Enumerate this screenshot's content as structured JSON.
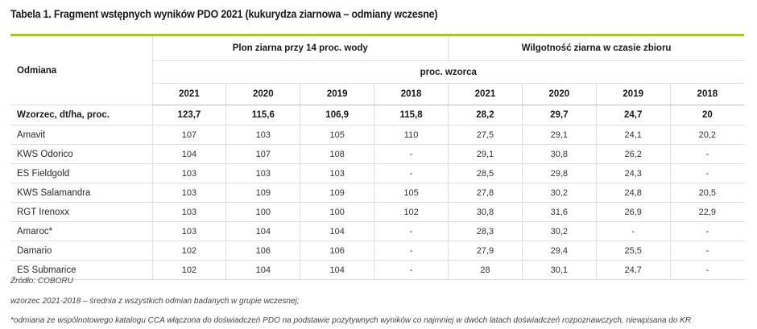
{
  "title": "Tabela 1. Fragment wstępnych wyników PDO 2021 (kukurydza ziarnowa – odmiany wczesne)",
  "header": {
    "variety_label": "Odmiana",
    "group_yield": "Plon ziarna przy 14 proc. wody",
    "group_moisture": "Wilgotność ziarna w czasie zbioru",
    "unit": "proc. wzorca",
    "years": [
      "2021",
      "2020",
      "2019",
      "2018",
      "2021",
      "2020",
      "2019",
      "2018"
    ]
  },
  "reference_row": {
    "name": "Wzorzec, dt/ha, proc.",
    "values": [
      "123,7",
      "115,6",
      "106,9",
      "115,8",
      "28,2",
      "29,7",
      "24,7",
      "20"
    ]
  },
  "rows": [
    {
      "name": "Amavit",
      "values": [
        "107",
        "103",
        "105",
        "110",
        "27,5",
        "29,1",
        "24,1",
        "20,2"
      ]
    },
    {
      "name": "KWS Odorico",
      "values": [
        "104",
        "107",
        "108",
        "-",
        "29,1",
        "30,8",
        "26,2",
        "-"
      ]
    },
    {
      "name": "ES Fieldgold",
      "values": [
        "103",
        "103",
        "103",
        "-",
        "28,5",
        "29,8",
        "24,3",
        "-"
      ]
    },
    {
      "name": "KWS Salamandra",
      "values": [
        "103",
        "109",
        "109",
        "105",
        "27,8",
        "30,2",
        "24,8",
        "20,5"
      ]
    },
    {
      "name": "RGT Irenoxx",
      "values": [
        "103",
        "100",
        "100",
        "102",
        "30,8",
        "31,6",
        "26,9",
        "22,9"
      ]
    },
    {
      "name": "Amaroc*",
      "values": [
        "103",
        "104",
        "104",
        "-",
        "28,3",
        "30,2",
        "-",
        "-"
      ]
    },
    {
      "name": "Damario",
      "values": [
        "102",
        "106",
        "106",
        "-",
        "27,9",
        "29,4",
        "25,5",
        "-"
      ]
    },
    {
      "name": "ES Submarice",
      "values": [
        "102",
        "104",
        "104",
        "-",
        "28",
        "30,1",
        "24,7",
        "-"
      ]
    }
  ],
  "notes": {
    "source": "Źródło: COBORU",
    "reference": "wzorzec 2021-2018 – średnia z wszystkich odmian badanych w grupie wczesnej;",
    "asterisk": "*odmiana ze wspólnotowego katalogu CCA włączona do doświadczeń PDO na podstawie pozytywnych wyników co najmniej w dwóch latach doświadczeń rozpoznawczych, niewpisana do KR"
  },
  "colors": {
    "accent_rule": "#a6c734"
  }
}
